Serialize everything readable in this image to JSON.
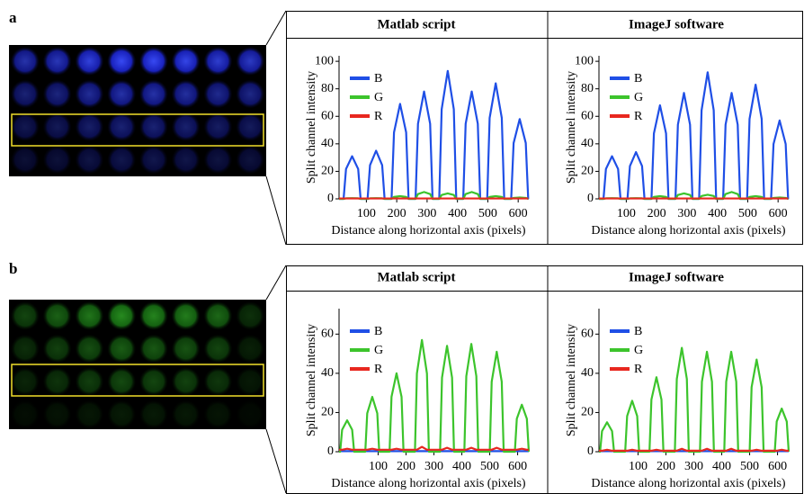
{
  "panels": [
    {
      "label": "a"
    },
    {
      "label": "b"
    }
  ],
  "chart_data": [
    {
      "type": "line",
      "title": "Matlab script",
      "x_label": "Distance along horizontal axis (pixels)",
      "y_label": "Split channel intensity",
      "x": [
        10,
        25,
        33,
        53,
        73,
        81,
        104,
        112,
        132,
        152,
        160,
        183,
        191,
        211,
        231,
        239,
        262,
        270,
        290,
        310,
        318,
        340,
        348,
        368,
        388,
        396,
        419,
        427,
        447,
        467,
        475,
        498,
        506,
        526,
        546,
        554,
        577,
        585,
        605,
        625,
        633
      ],
      "series": [
        {
          "name": "B",
          "color": "#1f4fe6",
          "values": [
            0,
            0,
            21.7,
            31,
            21.7,
            0,
            0,
            24.5,
            35,
            24.5,
            0,
            0,
            48.3,
            69,
            48.3,
            0,
            0,
            54.6,
            78,
            54.6,
            0,
            0,
            65.1,
            93,
            65.1,
            0,
            0,
            54.6,
            78,
            54.6,
            0,
            0,
            58.8,
            84,
            58.8,
            0,
            0,
            40.6,
            58,
            40.6,
            0
          ]
        },
        {
          "name": "G",
          "color": "#3cc42c",
          "values": [
            0,
            0,
            0.4,
            0.5,
            0.4,
            0,
            0,
            0.4,
            0.5,
            0.4,
            0,
            0,
            1.4,
            2,
            1.4,
            0,
            0,
            3.5,
            5,
            3.5,
            0,
            0,
            2.8,
            4,
            2.8,
            0,
            0,
            3.5,
            5,
            3.5,
            0,
            0,
            1.4,
            2,
            1.4,
            0,
            0,
            0.7,
            1,
            0.7,
            0
          ]
        },
        {
          "name": "R",
          "color": "#e8271f",
          "values": [
            0.3,
            0.3,
            0.3,
            0.3,
            0.3,
            0.3,
            0.3,
            0.3,
            0.3,
            0.3,
            0.3,
            0.3,
            0.3,
            0.3,
            0.3,
            0.3,
            0.3,
            0.3,
            0.3,
            0.3,
            0.3,
            0.3,
            0.3,
            0.3,
            0.3,
            0.3,
            0.3,
            0.3,
            0.3,
            0.3,
            0.3,
            0.3,
            0.3,
            0.3,
            0.3,
            0.3,
            0.3,
            0.3,
            0.3,
            0.3,
            0.3
          ]
        }
      ],
      "xlim": [
        10,
        635
      ],
      "ylim": [
        0,
        104
      ],
      "xticks": [
        100,
        200,
        300,
        400,
        500,
        600
      ],
      "yticks": [
        0,
        20,
        40,
        60,
        80,
        100
      ],
      "legend": "upper left"
    },
    {
      "type": "line",
      "title": "ImageJ software",
      "x_label": "Distance along horizontal axis (pixels)",
      "y_label": "Split channel intensity",
      "x": [
        10,
        25,
        33,
        53,
        73,
        81,
        104,
        112,
        132,
        152,
        160,
        183,
        191,
        211,
        231,
        239,
        262,
        270,
        290,
        310,
        318,
        340,
        348,
        368,
        388,
        396,
        419,
        427,
        447,
        467,
        475,
        498,
        506,
        526,
        546,
        554,
        577,
        585,
        605,
        625,
        633
      ],
      "series": [
        {
          "name": "B",
          "color": "#1f4fe6",
          "values": [
            0,
            0,
            21.7,
            31,
            21.7,
            0,
            0,
            23.8,
            34,
            23.8,
            0,
            0,
            47.6,
            68,
            47.6,
            0,
            0,
            53.9,
            77,
            53.9,
            0,
            0,
            64.4,
            92,
            64.4,
            0,
            0,
            53.9,
            77,
            53.9,
            0,
            0,
            58.1,
            83,
            58.1,
            0,
            0,
            39.9,
            57,
            39.9,
            0
          ]
        },
        {
          "name": "G",
          "color": "#3cc42c",
          "values": [
            0,
            0,
            0.4,
            0.5,
            0.4,
            0,
            0,
            0.4,
            0.5,
            0.4,
            0,
            0,
            1.4,
            2,
            1.4,
            0,
            0,
            2.8,
            4,
            2.8,
            0,
            0,
            2.1,
            3,
            2.1,
            0,
            0,
            3.5,
            5,
            3.5,
            0,
            0,
            1.4,
            2,
            1.4,
            0,
            0,
            0.7,
            1,
            0.7,
            0
          ]
        },
        {
          "name": "R",
          "color": "#e8271f",
          "values": [
            0.3,
            0.3,
            0.3,
            0.3,
            0.3,
            0.3,
            0.3,
            0.3,
            0.3,
            0.3,
            0.3,
            0.3,
            0.3,
            0.3,
            0.3,
            0.3,
            0.3,
            0.3,
            0.3,
            0.3,
            0.3,
            0.3,
            0.3,
            0.3,
            0.3,
            0.3,
            0.3,
            0.3,
            0.3,
            0.3,
            0.3,
            0.3,
            0.3,
            0.3,
            0.3,
            0.3,
            0.3,
            0.3,
            0.3,
            0.3,
            0.3
          ]
        }
      ],
      "xlim": [
        10,
        635
      ],
      "ylim": [
        0,
        104
      ],
      "xticks": [
        100,
        200,
        300,
        400,
        500,
        600
      ],
      "yticks": [
        0,
        20,
        40,
        60,
        80,
        100
      ],
      "legend": "upper left"
    },
    {
      "type": "line",
      "title": "Matlab script",
      "x_label": "Distance along horizontal axis (pixels)",
      "y_label": "Split channel intensity",
      "x": [
        -40,
        -36,
        -29,
        -11,
        7,
        14,
        54,
        61,
        79,
        97,
        104,
        141,
        148,
        166,
        184,
        191,
        232,
        239,
        257,
        275,
        282,
        322,
        329,
        347,
        365,
        372,
        409,
        416,
        434,
        452,
        459,
        500,
        507,
        525,
        543,
        550,
        590,
        597,
        615,
        633,
        640
      ],
      "series": [
        {
          "name": "B",
          "color": "#1f4fe6",
          "values": [
            0.3,
            0.3,
            0.3,
            0.3,
            0.3,
            0.3,
            0.3,
            0.3,
            0.3,
            0.3,
            0.3,
            0.3,
            0.3,
            0.3,
            0.3,
            0.3,
            0.3,
            0.3,
            0.3,
            0.3,
            0.3,
            0.3,
            0.3,
            0.3,
            0.3,
            0.3,
            0.3,
            0.3,
            0.3,
            0.3,
            0.3,
            0.3,
            0.3,
            0.3,
            0.3,
            0.3,
            0.3,
            0.3,
            0.3,
            0.3,
            0.3
          ]
        },
        {
          "name": "G",
          "color": "#3cc42c",
          "values": [
            0,
            0,
            11.2,
            16,
            11.2,
            0,
            0,
            19.6,
            28,
            19.6,
            0,
            0,
            28,
            40,
            28,
            0,
            0,
            39.9,
            57,
            39.9,
            0,
            0,
            37.8,
            54,
            37.8,
            0,
            0,
            38.5,
            55,
            38.5,
            0,
            0,
            35.7,
            51,
            35.7,
            0,
            0,
            16.8,
            24,
            16.8,
            0
          ]
        },
        {
          "name": "R",
          "color": "#e8271f",
          "values": [
            1,
            1,
            1,
            1.5,
            1,
            1,
            1,
            1,
            1.5,
            1,
            1,
            1,
            1,
            1.5,
            1,
            1,
            1,
            1,
            2.5,
            1,
            1,
            1,
            1,
            2,
            1,
            1,
            1,
            1,
            2,
            1,
            1,
            1,
            1,
            2,
            1,
            1,
            1,
            1,
            1.5,
            1,
            1
          ]
        }
      ],
      "xlim": [
        -40,
        640
      ],
      "ylim": [
        0,
        73
      ],
      "xticks": [
        100,
        200,
        300,
        400,
        500,
        600
      ],
      "yticks": [
        0,
        20,
        40,
        60
      ],
      "legend": "upper left"
    },
    {
      "type": "line",
      "title": "ImageJ software",
      "x_label": "Distance along horizontal axis (pixels)",
      "y_label": "Split channel intensity",
      "x": [
        -40,
        -36,
        -29,
        -11,
        7,
        14,
        54,
        61,
        79,
        97,
        104,
        141,
        148,
        166,
        184,
        191,
        232,
        239,
        257,
        275,
        282,
        322,
        329,
        347,
        365,
        372,
        409,
        416,
        434,
        452,
        459,
        500,
        507,
        525,
        543,
        550,
        590,
        597,
        615,
        633,
        640
      ],
      "series": [
        {
          "name": "B",
          "color": "#1f4fe6",
          "values": [
            0.3,
            0.3,
            0.3,
            0.3,
            0.3,
            0.3,
            0.3,
            0.3,
            0.3,
            0.3,
            0.3,
            0.3,
            0.3,
            0.3,
            0.3,
            0.3,
            0.3,
            0.3,
            0.3,
            0.3,
            0.3,
            0.3,
            0.3,
            0.3,
            0.3,
            0.3,
            0.3,
            0.3,
            0.3,
            0.3,
            0.3,
            0.3,
            0.3,
            0.3,
            0.3,
            0.3,
            0.3,
            0.3,
            0.3,
            0.3,
            0.3
          ]
        },
        {
          "name": "G",
          "color": "#3cc42c",
          "values": [
            0,
            0,
            10.5,
            15,
            10.5,
            0,
            0,
            18.2,
            26,
            18.2,
            0,
            0,
            26.6,
            38,
            26.6,
            0,
            0,
            37.1,
            53,
            37.1,
            0,
            0,
            35.7,
            51,
            35.7,
            0,
            0,
            35.7,
            51,
            35.7,
            0,
            0,
            32.9,
            47,
            32.9,
            0,
            0,
            15.4,
            22,
            15.4,
            0
          ]
        },
        {
          "name": "R",
          "color": "#e8271f",
          "values": [
            0.5,
            0.5,
            0.5,
            1,
            0.5,
            0.5,
            0.5,
            0.5,
            1,
            0.5,
            0.5,
            0.5,
            0.5,
            1,
            0.5,
            0.5,
            0.5,
            0.5,
            1.5,
            0.5,
            0.5,
            0.5,
            0.5,
            1.5,
            0.5,
            0.5,
            0.5,
            0.5,
            1.5,
            0.5,
            0.5,
            0.5,
            0.5,
            1,
            0.5,
            0.5,
            0.5,
            0.5,
            1,
            0.5,
            0.5
          ]
        }
      ],
      "xlim": [
        -40,
        640
      ],
      "ylim": [
        0,
        73
      ],
      "xticks": [
        100,
        200,
        300,
        400,
        500,
        600
      ],
      "yticks": [
        0,
        20,
        40,
        60
      ],
      "legend": "upper left"
    }
  ]
}
